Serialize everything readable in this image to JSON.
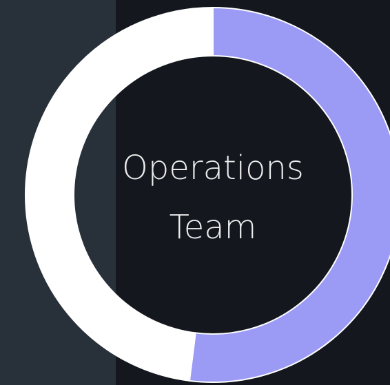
{
  "chart_data": {
    "type": "donut",
    "center_label": [
      "Operations",
      "Team"
    ],
    "values": [
      52,
      48
    ],
    "colors": [
      "#9b9af5",
      "#ffffff"
    ],
    "start_angle": 0,
    "direction": "clockwise"
  }
}
